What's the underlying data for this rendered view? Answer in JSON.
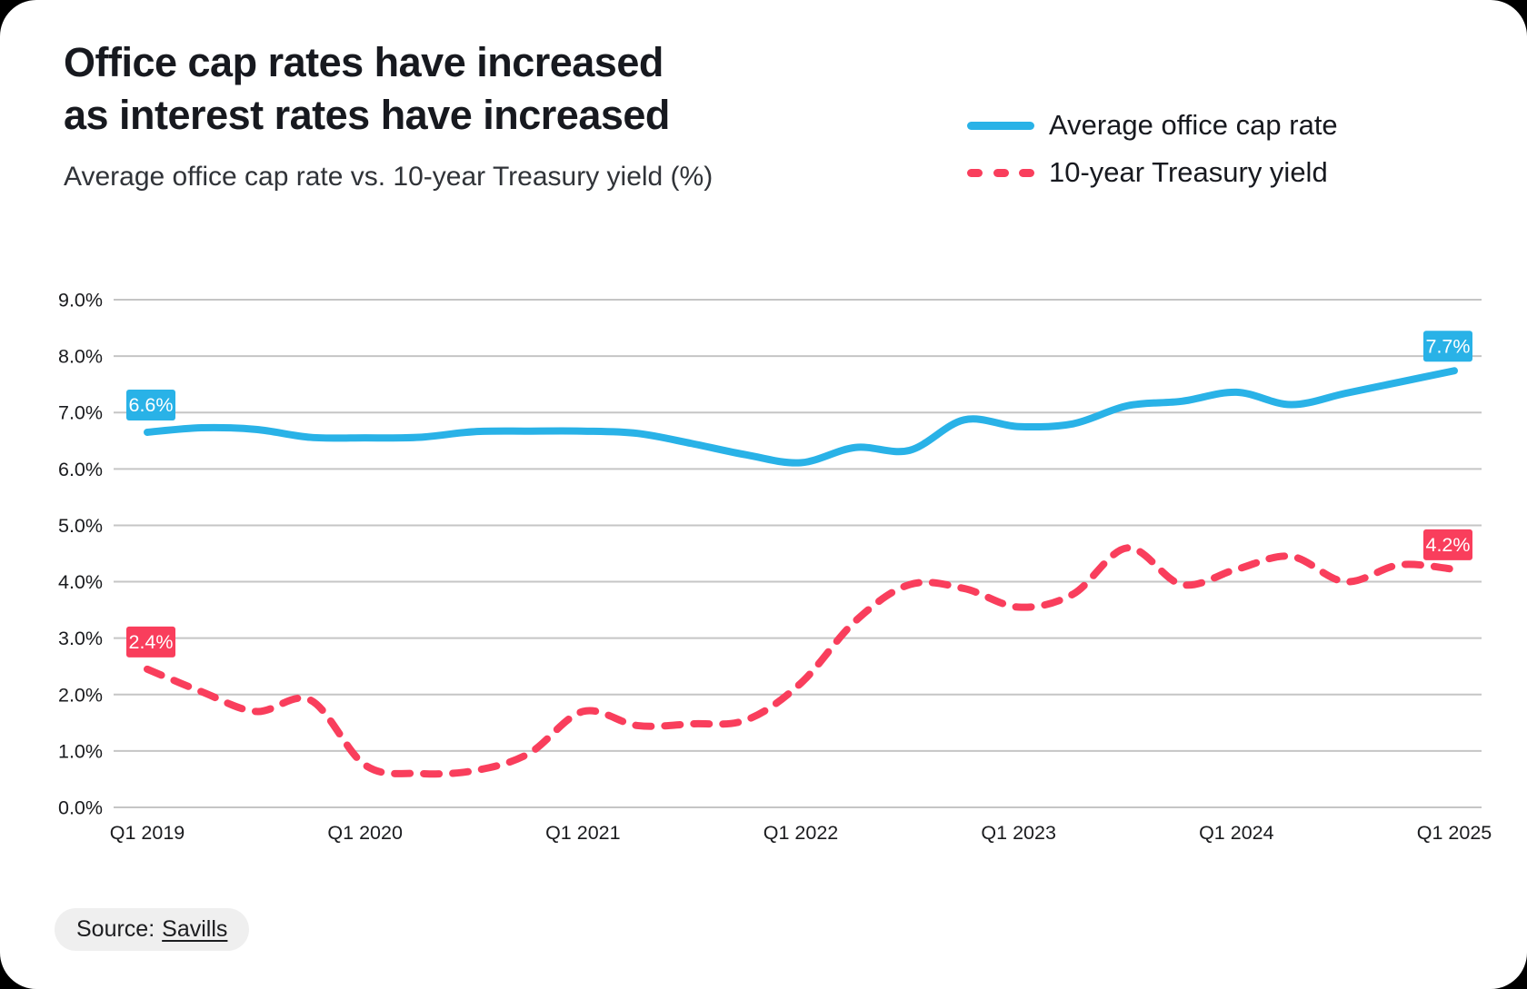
{
  "header": {
    "title_line1": "Office cap rates have increased",
    "title_line2": "as interest rates have increased",
    "subtitle": "Average office cap rate vs. 10-year Treasury yield (%)"
  },
  "legend": {
    "items": [
      {
        "label": "Average office cap rate",
        "color": "#29b2e7",
        "style": "solid"
      },
      {
        "label": "10-year Treasury yield",
        "color": "#f93e5c",
        "style": "dashed"
      }
    ]
  },
  "source": {
    "label": "Source:",
    "link_text": "Savills"
  },
  "colors": {
    "cap_rate_blue": "#29b2e7",
    "treasury_red": "#f93e5c",
    "grid": "#c5c5c5",
    "text_dark": "#17191f"
  },
  "chart_data": {
    "type": "line",
    "title": "Office cap rates have increased as interest rates have increased",
    "subtitle": "Average office cap rate vs. 10-year Treasury yield (%)",
    "xlabel": "",
    "ylabel": "",
    "ylim": [
      0,
      9
    ],
    "grid": true,
    "grid_color": "#c5c5c5",
    "legend_position": "top-right",
    "y_ticks": [
      {
        "value": 9,
        "label": "9.0%"
      },
      {
        "value": 8,
        "label": "8.0%"
      },
      {
        "value": 7,
        "label": "7.0%"
      },
      {
        "value": 6,
        "label": "6.0%"
      },
      {
        "value": 5,
        "label": "5.0%"
      },
      {
        "value": 4,
        "label": "4.0%"
      },
      {
        "value": 3,
        "label": "3.0%"
      },
      {
        "value": 2,
        "label": "2.0%"
      },
      {
        "value": 1,
        "label": "1.0%"
      },
      {
        "value": 0,
        "label": "0.0%"
      }
    ],
    "categories": [
      "Q1 2019",
      "Q2 2019",
      "Q3 2019",
      "Q4 2019",
      "Q1 2020",
      "Q2 2020",
      "Q3 2020",
      "Q4 2020",
      "Q1 2021",
      "Q2 2021",
      "Q3 2021",
      "Q4 2021",
      "Q1 2022",
      "Q2 2022",
      "Q3 2022",
      "Q4 2022",
      "Q1 2023",
      "Q2 2023",
      "Q3 2023",
      "Q4 2023",
      "Q1 2024",
      "Q2 2024",
      "Q3 2024",
      "Q4 2024",
      "Q1 2025"
    ],
    "x_tick_labels": [
      "Q1 2019",
      "Q1 2020",
      "Q1 2021",
      "Q1 2022",
      "Q1 2023",
      "Q1 2024",
      "Q1 2025"
    ],
    "x_tick_every": 4,
    "series": [
      {
        "id": "cap-rate",
        "name": "Average office cap rate",
        "color": "#29b2e7",
        "dash": null,
        "start_label": "6.6%",
        "end_label": "7.7%",
        "values": [
          6.65,
          6.73,
          6.7,
          6.56,
          6.55,
          6.56,
          6.66,
          6.67,
          6.67,
          6.63,
          6.45,
          6.25,
          6.11,
          6.38,
          6.33,
          6.87,
          6.75,
          6.8,
          7.12,
          7.2,
          7.36,
          7.14,
          7.34,
          7.54,
          7.74
        ]
      },
      {
        "id": "treasury-yield",
        "name": "10-year Treasury yield",
        "color": "#f93e5c",
        "dash": "17 15",
        "start_label": "2.4%",
        "end_label": "4.2%",
        "values": [
          2.45,
          2.05,
          1.7,
          1.9,
          0.75,
          0.6,
          0.65,
          0.95,
          1.7,
          1.45,
          1.48,
          1.55,
          2.2,
          3.3,
          3.95,
          3.88,
          3.55,
          3.78,
          4.6,
          3.95,
          4.22,
          4.45,
          4.0,
          4.3,
          4.22
        ]
      }
    ]
  }
}
